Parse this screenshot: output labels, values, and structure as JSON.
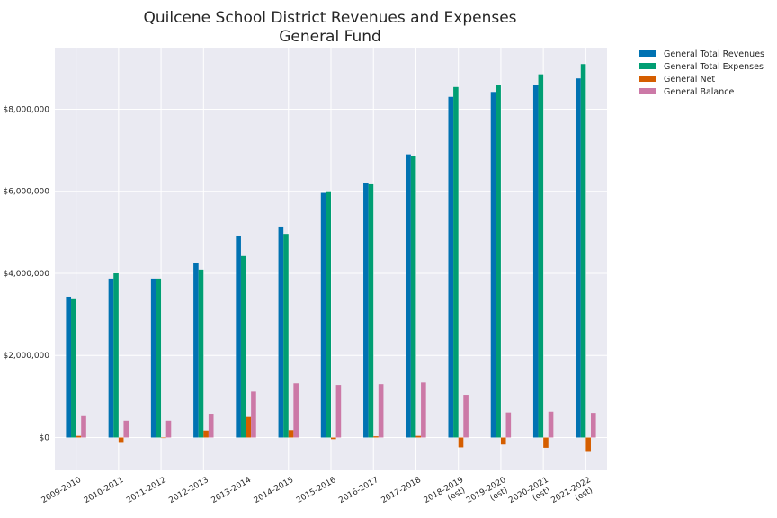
{
  "chart_data": {
    "type": "bar",
    "title": "Quilcene School District Revenues and Expenses",
    "subtitle": "General Fund",
    "xlabel": "",
    "ylabel": "",
    "categories": [
      "2009-2010",
      "2010-2011",
      "2011-2012",
      "2012-2013",
      "2013-2014",
      "2014-2015",
      "2015-2016",
      "2016-2017",
      "2017-2018",
      "2018-2019 (est)",
      "2019-2020 (est)",
      "2020-2021 (est)",
      "2021-2022 (est)"
    ],
    "category_lines": [
      [
        "2009-2010"
      ],
      [
        "2010-2011"
      ],
      [
        "2011-2012"
      ],
      [
        "2012-2013"
      ],
      [
        "2013-2014"
      ],
      [
        "2014-2015"
      ],
      [
        "2015-2016"
      ],
      [
        "2016-2017"
      ],
      [
        "2017-2018"
      ],
      [
        "2018-2019",
        "(est)"
      ],
      [
        "2019-2020",
        "(est)"
      ],
      [
        "2020-2021",
        "(est)"
      ],
      [
        "2021-2022",
        "(est)"
      ]
    ],
    "series": [
      {
        "name": "General Total Revenues",
        "color": "#0072b2",
        "values": [
          3430000,
          3870000,
          3870000,
          4260000,
          4920000,
          5140000,
          5960000,
          6200000,
          6900000,
          8300000,
          8420000,
          8600000,
          8750000
        ]
      },
      {
        "name": "General Total Expenses",
        "color": "#009e73",
        "values": [
          3390000,
          4000000,
          3870000,
          4090000,
          4420000,
          4960000,
          6000000,
          6170000,
          6860000,
          8540000,
          8580000,
          8850000,
          9100000
        ]
      },
      {
        "name": "General Net",
        "color": "#d55e00",
        "values": [
          40000,
          -130000,
          0,
          170000,
          500000,
          180000,
          -40000,
          30000,
          40000,
          -240000,
          -170000,
          -250000,
          -350000
        ]
      },
      {
        "name": "General Balance",
        "color": "#cc79a7",
        "values": [
          520000,
          410000,
          410000,
          580000,
          1120000,
          1320000,
          1280000,
          1300000,
          1340000,
          1040000,
          610000,
          630000,
          600000
        ]
      }
    ],
    "yticks": [
      0,
      2000000,
      4000000,
      6000000,
      8000000
    ],
    "ytick_labels": [
      "$0",
      "$2,000,000",
      "$4,000,000",
      "$6,000,000",
      "$8,000,000"
    ],
    "ylim": [
      -800000,
      9500000
    ],
    "grid": true,
    "legend_position": "outside-top-right",
    "style": {
      "plot_background": "#eaeaf2",
      "grid_color": "#ffffff"
    }
  }
}
